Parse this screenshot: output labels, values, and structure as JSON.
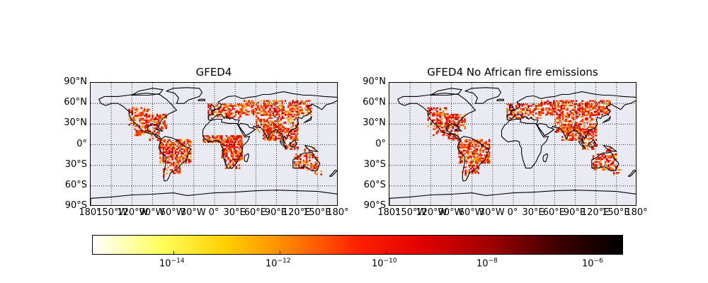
{
  "maps": [
    {
      "title": "GFED4",
      "variant": "full",
      "lat_labels": [
        "90°N",
        "60°N",
        "30°N",
        "0°",
        "30°S",
        "60°S",
        "90°S"
      ],
      "lon_labels": [
        "180°",
        "150°W",
        "120°W",
        "90°W",
        "60°W",
        "30°W",
        "0°",
        "30°E",
        "60°E",
        "90°E",
        "120°E",
        "150°E",
        "180°"
      ]
    },
    {
      "title": "GFED4 No African fire emissions",
      "variant": "no-africa",
      "lat_labels": [
        "90°N",
        "60°N",
        "30°N",
        "0°",
        "30°S",
        "60°S",
        "90°S"
      ],
      "lon_labels": [
        "180°",
        "150°W",
        "120°W",
        "90°W",
        "60°W",
        "30°W",
        "0°",
        "30°E",
        "60°E",
        "90°E",
        "120°E",
        "150°E",
        "180°"
      ]
    }
  ],
  "colorbar": {
    "colormap": "hot_r",
    "scale": "log",
    "tick_bases": [
      "10",
      "10",
      "10",
      "10",
      "10"
    ],
    "tick_exponents": [
      "−14",
      "−12",
      "−10",
      "−8",
      "−6"
    ],
    "colors": [
      "#ffffff",
      "#ffff60",
      "#ffd000",
      "#ff8000",
      "#ff2000",
      "#e00000",
      "#a00000",
      "#400000",
      "#000000"
    ]
  }
}
